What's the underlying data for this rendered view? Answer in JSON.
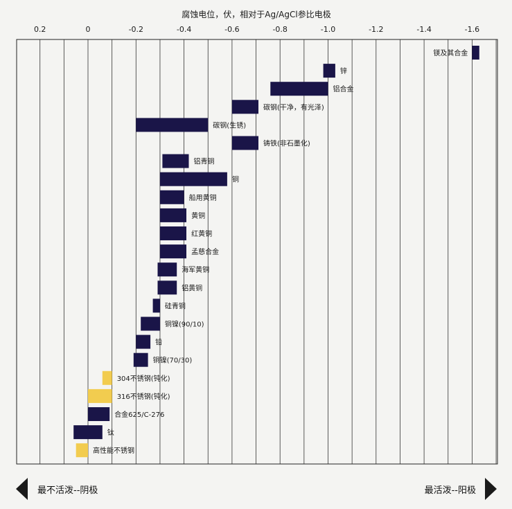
{
  "chart_data": {
    "type": "bar",
    "title": "腐蚀电位，伏，相对于Ag/AgCl参比电极",
    "x_axis": {
      "ticks": [
        0.2,
        0,
        -0.2,
        -0.4,
        -0.6,
        -0.8,
        -1.0,
        -1.2,
        -1.4,
        -1.6
      ],
      "tick_labels": [
        "0.2",
        "0",
        "-0.2",
        "-0.4",
        "-0.6",
        "-0.8",
        "-1.0",
        "-1.2",
        "-1.4",
        "-1.6"
      ],
      "range": [
        0.3,
        -1.7
      ],
      "reversed": true,
      "minor_gridlines_every": 0.1
    },
    "grid": true,
    "series": [
      {
        "label": "镁及其合金",
        "start": -1.6,
        "end": -1.63,
        "color": "#1a1548"
      },
      {
        "label": "锌",
        "start": -0.98,
        "end": -1.03,
        "color": "#1a1548"
      },
      {
        "label": "铝合金",
        "start": -0.76,
        "end": -1.0,
        "color": "#1a1548"
      },
      {
        "label": "碳钢(干净，有光泽)",
        "start": -0.6,
        "end": -0.71,
        "color": "#1a1548"
      },
      {
        "label": "碳钢(生锈)",
        "start": -0.2,
        "end": -0.5,
        "color": "#1a1548"
      },
      {
        "label": "铸铁(非石墨化)",
        "start": -0.6,
        "end": -0.71,
        "color": "#1a1548"
      },
      {
        "label": "铝青铜",
        "start": -0.31,
        "end": -0.42,
        "color": "#1a1548"
      },
      {
        "label": "铜",
        "start": -0.3,
        "end": -0.58,
        "color": "#1a1548"
      },
      {
        "label": "船用黄铜",
        "start": -0.3,
        "end": -0.4,
        "color": "#1a1548"
      },
      {
        "label": "黄铜",
        "start": -0.3,
        "end": -0.41,
        "color": "#1a1548"
      },
      {
        "label": "红黄铜",
        "start": -0.3,
        "end": -0.41,
        "color": "#1a1548"
      },
      {
        "label": "孟慈合金",
        "start": -0.3,
        "end": -0.41,
        "color": "#1a1548"
      },
      {
        "label": "海军黄铜",
        "start": -0.29,
        "end": -0.37,
        "color": "#1a1548"
      },
      {
        "label": "铝黄铜",
        "start": -0.29,
        "end": -0.37,
        "color": "#1a1548"
      },
      {
        "label": "硅青铜",
        "start": -0.27,
        "end": -0.3,
        "color": "#1a1548"
      },
      {
        "label": "铜镍(90/10)",
        "start": -0.22,
        "end": -0.3,
        "color": "#1a1548"
      },
      {
        "label": "铅",
        "start": -0.2,
        "end": -0.26,
        "color": "#1a1548"
      },
      {
        "label": "铜镍(70/30)",
        "start": -0.19,
        "end": -0.25,
        "color": "#1a1548"
      },
      {
        "label": "304不锈钢(钝化)",
        "start": -0.06,
        "end": -0.1,
        "color": "#f2cc4f"
      },
      {
        "label": "316不锈钢(钝化)",
        "start": -0.0,
        "end": -0.1,
        "color": "#f2cc4f"
      },
      {
        "label": "合金625/C-276",
        "start": -0.0,
        "end": -0.09,
        "color": "#1a1548"
      },
      {
        "label": "钛",
        "start": 0.06,
        "end": -0.06,
        "color": "#1a1548"
      },
      {
        "label": "高性能不锈钢",
        "start": 0.05,
        "end": 0.0,
        "color": "#f2cc4f"
      }
    ]
  },
  "footer": {
    "left_label": "最不活泼--阴极",
    "right_label": "最活泼--阳极"
  }
}
